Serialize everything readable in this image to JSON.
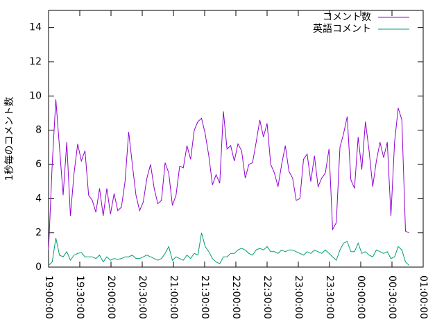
{
  "chart_data": {
    "type": "line",
    "ylabel": "1秒毎のコメント数",
    "x": [
      "19:00:00",
      "19:03:30",
      "19:07:00",
      "19:10:30",
      "19:14:00",
      "19:17:30",
      "19:21:00",
      "19:24:30",
      "19:28:00",
      "19:31:30",
      "19:35:00",
      "19:38:30",
      "19:42:00",
      "19:45:30",
      "19:49:00",
      "19:52:30",
      "19:56:00",
      "19:59:30",
      "20:03:00",
      "20:06:30",
      "20:10:00",
      "20:13:30",
      "20:17:00",
      "20:20:30",
      "20:24:00",
      "20:27:30",
      "20:31:00",
      "20:34:30",
      "20:38:00",
      "20:41:30",
      "20:45:00",
      "20:48:30",
      "20:52:00",
      "20:55:30",
      "20:59:00",
      "21:02:30",
      "21:06:00",
      "21:09:30",
      "21:13:00",
      "21:16:30",
      "21:20:00",
      "21:23:30",
      "21:27:00",
      "21:30:30",
      "21:34:00",
      "21:37:30",
      "21:41:00",
      "21:44:30",
      "21:48:00",
      "21:51:30",
      "21:55:00",
      "21:58:30",
      "22:02:00",
      "22:05:30",
      "22:09:00",
      "22:12:30",
      "22:16:00",
      "22:19:30",
      "22:23:00",
      "22:26:30",
      "22:30:00",
      "22:33:30",
      "22:37:00",
      "22:40:30",
      "22:44:00",
      "22:47:30",
      "22:51:00",
      "22:54:30",
      "22:58:00",
      "23:01:30",
      "23:05:00",
      "23:08:30",
      "23:12:00",
      "23:15:30",
      "23:19:00",
      "23:22:30",
      "23:26:00",
      "23:29:30",
      "23:33:00",
      "23:36:30",
      "23:40:00",
      "23:43:30",
      "23:47:00",
      "23:50:30",
      "23:54:00",
      "23:57:30",
      "00:01:00",
      "00:04:30",
      "00:08:00",
      "00:11:30",
      "00:15:00",
      "00:18:30",
      "00:22:00",
      "00:25:30",
      "00:29:00",
      "00:32:30",
      "00:36:00",
      "00:39:30",
      "00:43:00",
      "00:46:30"
    ],
    "series": [
      {
        "name": "コメント数",
        "color": "#9400d3",
        "values": [
          1.0,
          6,
          9.8,
          7,
          4.2,
          7.3,
          3.0,
          5.5,
          7.2,
          6.2,
          6.8,
          4.2,
          3.9,
          3.2,
          4.6,
          3.0,
          4.6,
          3.1,
          4.3,
          3.3,
          3.5,
          5.0,
          7.9,
          6.0,
          4.2,
          3.3,
          3.8,
          5.2,
          6.0,
          4.6,
          3.7,
          3.9,
          6.1,
          5.5,
          3.6,
          4.2,
          5.9,
          5.8,
          7.1,
          6.3,
          8.0,
          8.5,
          8.7,
          7.8,
          6.5,
          4.8,
          5.4,
          4.9,
          9.1,
          6.9,
          7.1,
          6.2,
          7.2,
          6.8,
          5.2,
          6.0,
          6.1,
          7.3,
          8.6,
          7.6,
          8.4,
          6.0,
          5.5,
          4.7,
          6.0,
          7.1,
          5.6,
          5.2,
          3.9,
          4.0,
          6.3,
          6.6,
          5.0,
          6.5,
          4.7,
          5.2,
          5.5,
          6.9,
          2.2,
          2.6,
          7.0,
          7.8,
          8.8,
          5.1,
          4.6,
          7.6,
          5.7,
          8.5,
          6.8,
          4.7,
          6.2,
          7.3,
          6.4,
          7.3,
          3.0,
          7.3,
          9.3,
          8.6,
          2.1,
          2.0
        ]
      },
      {
        "name": "英語コメント",
        "color": "#009e73",
        "values": [
          0.1,
          0.3,
          1.7,
          0.7,
          0.6,
          0.9,
          0.4,
          0.7,
          0.8,
          0.85,
          0.6,
          0.6,
          0.6,
          0.5,
          0.7,
          0.3,
          0.6,
          0.4,
          0.5,
          0.45,
          0.5,
          0.6,
          0.6,
          0.7,
          0.5,
          0.5,
          0.6,
          0.7,
          0.6,
          0.5,
          0.4,
          0.5,
          0.8,
          1.2,
          0.4,
          0.6,
          0.5,
          0.4,
          0.7,
          0.5,
          0.8,
          0.7,
          2.0,
          1.2,
          0.9,
          0.5,
          0.3,
          0.2,
          0.6,
          0.6,
          0.8,
          0.8,
          1.0,
          1.1,
          1.0,
          0.8,
          0.7,
          1.0,
          1.1,
          1.0,
          1.2,
          0.9,
          0.9,
          0.8,
          1.0,
          0.9,
          1.0,
          1.0,
          0.9,
          0.8,
          0.7,
          0.9,
          0.8,
          1.0,
          0.9,
          0.8,
          1.0,
          0.8,
          0.6,
          0.4,
          1.0,
          1.4,
          1.5,
          0.9,
          0.9,
          1.4,
          0.8,
          0.9,
          0.7,
          0.6,
          1.0,
          0.9,
          0.8,
          0.9,
          0.5,
          0.6,
          1.2,
          1.0,
          0.3,
          0.1
        ]
      }
    ],
    "xlim": [
      "19:00:00",
      "01:00:00"
    ],
    "xticks": [
      "19:00:00",
      "19:30:00",
      "20:00:00",
      "20:30:00",
      "21:00:00",
      "21:30:00",
      "22:00:00",
      "22:30:00",
      "23:00:00",
      "23:30:00",
      "00:00:00",
      "00:30:00",
      "01:00:00"
    ],
    "ylim": [
      0,
      15
    ],
    "yticks": [
      0,
      2,
      4,
      6,
      8,
      10,
      12,
      14
    ],
    "legend": "top-right"
  }
}
